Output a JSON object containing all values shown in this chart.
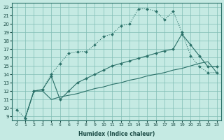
{
  "xlabel": "Humidex (Indice chaleur)",
  "xlim": [
    -0.5,
    23.5
  ],
  "ylim": [
    8.5,
    22.5
  ],
  "xticks": [
    0,
    1,
    2,
    3,
    4,
    5,
    6,
    7,
    8,
    9,
    10,
    11,
    12,
    13,
    14,
    15,
    16,
    17,
    18,
    19,
    20,
    21,
    22,
    23
  ],
  "yticks": [
    9,
    10,
    11,
    12,
    13,
    14,
    15,
    16,
    17,
    18,
    19,
    20,
    21,
    22
  ],
  "bg_color": "#c5eae3",
  "grid_color": "#80bdb5",
  "line_color": "#2a7068",
  "line1_x": [
    0,
    1,
    2,
    3,
    4,
    5,
    6,
    7,
    8,
    9,
    10,
    11,
    12,
    13,
    14,
    15,
    16,
    17,
    18,
    19,
    20,
    21,
    22,
    23
  ],
  "line1_y": [
    9.8,
    8.8,
    12.0,
    12.2,
    14.0,
    15.3,
    16.5,
    16.7,
    16.7,
    17.5,
    18.5,
    18.8,
    19.8,
    20.0,
    21.8,
    21.8,
    21.5,
    20.5,
    21.5,
    19.0,
    16.2,
    14.9,
    14.2,
    14.2
  ],
  "line2_x": [
    1,
    2,
    3,
    4,
    5,
    6,
    7,
    8,
    9,
    10,
    11,
    12,
    13,
    14,
    15,
    16,
    17,
    18,
    19,
    20,
    21,
    22,
    23
  ],
  "line2_y": [
    8.8,
    12.0,
    12.2,
    13.8,
    11.0,
    12.0,
    13.0,
    13.5,
    14.0,
    14.5,
    15.0,
    15.3,
    15.6,
    15.9,
    16.2,
    16.5,
    16.8,
    17.0,
    18.8,
    17.5,
    16.2,
    14.9,
    14.9
  ],
  "line3_x": [
    1,
    2,
    3,
    4,
    5,
    6,
    7,
    8,
    9,
    10,
    11,
    12,
    13,
    14,
    15,
    16,
    17,
    18,
    19,
    20,
    21,
    22,
    23
  ],
  "line3_y": [
    8.8,
    12.0,
    12.0,
    11.0,
    11.3,
    11.5,
    11.7,
    12.0,
    12.3,
    12.5,
    12.8,
    13.0,
    13.3,
    13.5,
    13.8,
    14.0,
    14.2,
    14.5,
    14.7,
    15.0,
    15.3,
    15.5,
    14.2
  ]
}
